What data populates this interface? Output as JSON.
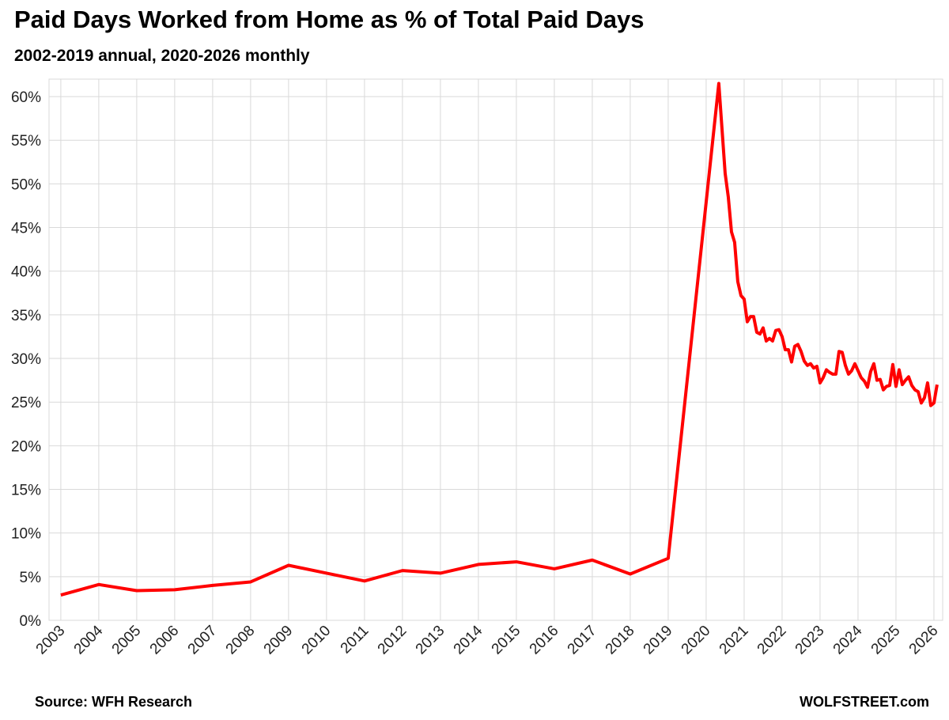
{
  "chart_data": {
    "type": "line",
    "title": "Paid Days Worked from Home as % of Total Paid Days",
    "subtitle": "2002-2019 annual, 2020-2026 monthly",
    "source": "Source: WFH Research",
    "credit": "WOLFSTREET.com",
    "grid": true,
    "xlim": [
      2002.69,
      2026.23
    ],
    "xticks": [
      2003,
      2004,
      2005,
      2006,
      2007,
      2008,
      2009,
      2010,
      2011,
      2012,
      2013,
      2014,
      2015,
      2016,
      2017,
      2018,
      2019,
      2020,
      2021,
      2022,
      2023,
      2024,
      2025,
      2026
    ],
    "ylim": [
      0,
      62
    ],
    "yticks": [
      {
        "value": 0,
        "label": "0%"
      },
      {
        "value": 5,
        "label": "5%"
      },
      {
        "value": 10,
        "label": "10%"
      },
      {
        "value": 15,
        "label": "15%"
      },
      {
        "value": 20,
        "label": "20%"
      },
      {
        "value": 25,
        "label": "25%"
      },
      {
        "value": 30,
        "label": "30%"
      },
      {
        "value": 35,
        "label": "35%"
      },
      {
        "value": 40,
        "label": "40%"
      },
      {
        "value": 45,
        "label": "45%"
      },
      {
        "value": 50,
        "label": "50%"
      },
      {
        "value": 55,
        "label": "55%"
      },
      {
        "value": 60,
        "label": "60%"
      }
    ],
    "x": [
      2003,
      2004,
      2005,
      2006,
      2007,
      2008,
      2009,
      2010,
      2011,
      2012,
      2013,
      2014,
      2015,
      2016,
      2017,
      2018,
      2019,
      2020.333,
      2020.417,
      2020.5,
      2020.583,
      2020.667,
      2020.75,
      2020.833,
      2020.917,
      2021,
      2021.083,
      2021.167,
      2021.25,
      2021.333,
      2021.417,
      2021.5,
      2021.583,
      2021.667,
      2021.75,
      2021.833,
      2021.917,
      2022,
      2022.083,
      2022.167,
      2022.25,
      2022.333,
      2022.417,
      2022.5,
      2022.583,
      2022.667,
      2022.75,
      2022.833,
      2022.917,
      2023,
      2023.083,
      2023.167,
      2023.25,
      2023.333,
      2023.417,
      2023.5,
      2023.583,
      2023.667,
      2023.75,
      2023.833,
      2023.917,
      2024,
      2024.083,
      2024.167,
      2024.25,
      2024.333,
      2024.417,
      2024.5,
      2024.583,
      2024.667,
      2024.75,
      2024.833,
      2024.917,
      2025,
      2025.083,
      2025.167,
      2025.25,
      2025.333,
      2025.417,
      2025.5,
      2025.583,
      2025.667,
      2025.75,
      2025.833,
      2025.917,
      2026,
      2026.083
    ],
    "series": [
      {
        "color": "#ff0000",
        "values": [
          2.9,
          4.1,
          3.4,
          3.5,
          4.0,
          4.4,
          6.3,
          5.4,
          4.5,
          5.7,
          5.4,
          6.4,
          6.7,
          5.9,
          6.9,
          5.3,
          7.1,
          61.5,
          56.3,
          51.2,
          48.5,
          44.5,
          43.3,
          38.8,
          37.2,
          36.8,
          34.2,
          34.8,
          34.8,
          33.0,
          32.8,
          33.5,
          32.0,
          32.3,
          32.0,
          33.2,
          33.3,
          32.5,
          31.0,
          31.0,
          29.6,
          31.4,
          31.6,
          30.8,
          29.7,
          29.2,
          29.4,
          28.9,
          29.1,
          27.2,
          27.8,
          28.7,
          28.4,
          28.2,
          28.2,
          30.8,
          30.7,
          29.2,
          28.2,
          28.6,
          29.4,
          28.6,
          27.8,
          27.4,
          26.7,
          28.5,
          29.4,
          27.5,
          27.6,
          26.4,
          26.8,
          26.9,
          29.3,
          26.8,
          28.7,
          27.0,
          27.5,
          27.9,
          26.9,
          26.4,
          26.2,
          24.9,
          25.5,
          27.2,
          24.6,
          24.9,
          27.0
        ]
      }
    ]
  }
}
